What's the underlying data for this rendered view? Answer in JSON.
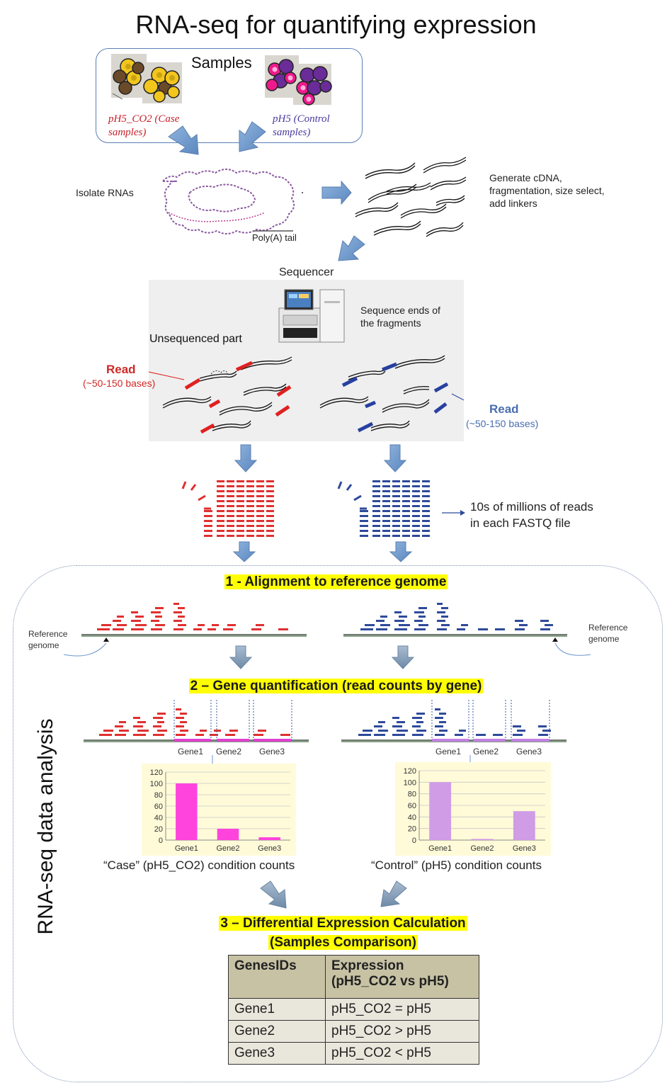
{
  "title": "RNA-seq for quantifying expression",
  "samples": {
    "heading": "Samples",
    "case_label": "pH5_CO2 (Case samples)",
    "case_line1": "pH5_CO2 (Case",
    "case_line2": "samples)",
    "control_line1": "pH5 (Control",
    "control_line2": "samples)"
  },
  "isolate": {
    "label": "Isolate RNAs",
    "polya": "Poly(A) tail",
    "cdna_line1": "Generate cDNA,",
    "cdna_line2": "fragmentation, size select,",
    "cdna_line3": "add linkers"
  },
  "sequencer": {
    "label": "Sequencer",
    "ends_line1": "Sequence ends of",
    "ends_line2": "the fragments",
    "unsequenced": "Unsequenced part",
    "read_left": "Read",
    "read_left_sub": "(~50-150 bases)",
    "read_right": "Read",
    "read_right_sub": "(~50-150 bases)"
  },
  "fastq": {
    "line1": "10s of millions of reads",
    "line2": "in each FASTQ file"
  },
  "analysis": {
    "vertical_label": "RNA-seq data analysis",
    "step1": "1 - Alignment to reference genome",
    "ref_left_line1": "Reference",
    "ref_left_line2": "genome",
    "ref_right_line1": "Reference",
    "ref_right_line2": "genome",
    "step2": "2 – Gene quantification (read counts by gene)",
    "gene_labels": [
      "Gene1",
      "Gene2",
      "Gene3"
    ],
    "case_counts_label": "“Case” (pH5_CO2) condition counts",
    "control_counts_label": "“Control” (pH5) condition counts",
    "step3_line1": "3 – Differential Expression Calculation",
    "step3_line2": "(Samples Comparison)"
  },
  "table": {
    "header1": "GenesIDs",
    "header2_line1": "Expression",
    "header2_line2": "(pH5_CO2 vs pH5)",
    "rows": [
      {
        "gene": "Gene1",
        "expr": "pH5_CO2 = pH5"
      },
      {
        "gene": "Gene2",
        "expr": "pH5_CO2 > pH5"
      },
      {
        "gene": "Gene3",
        "expr": "pH5_CO2 < pH5"
      }
    ]
  },
  "colors": {
    "case_red": "#e03030",
    "control_blue": "#2e4a9a",
    "arrow_blue": "#6a96cc",
    "case_bar": "#ff44dd",
    "control_bar": "#d09ce6",
    "highlight": "#ffff00"
  },
  "chart_data": [
    {
      "type": "bar",
      "title": "",
      "categories": [
        "Gene1",
        "Gene2",
        "Gene3"
      ],
      "values": [
        100,
        20,
        5
      ],
      "ylim": [
        0,
        120
      ],
      "yticks": [
        0,
        20,
        40,
        60,
        80,
        100,
        120
      ],
      "grid": true
    },
    {
      "type": "bar",
      "title": "",
      "categories": [
        "Gene1",
        "Gene2",
        "Gene3"
      ],
      "values": [
        100,
        2,
        50
      ],
      "ylim": [
        0,
        120
      ],
      "yticks": [
        0,
        20,
        40,
        60,
        80,
        100,
        120
      ],
      "grid": true
    }
  ]
}
